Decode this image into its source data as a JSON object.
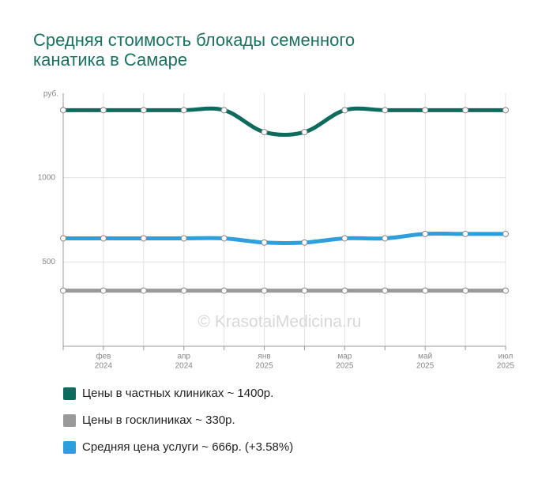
{
  "chart_data": {
    "type": "line",
    "title": [
      "Средняя стоимость блокады семенного",
      "канатика в Самаре"
    ],
    "y_axis_label": "руб.",
    "watermark": "© KrasotaiMedicina.ru",
    "categories": [
      null,
      [
        "фев",
        "2024"
      ],
      null,
      [
        "апр",
        "2024"
      ],
      null,
      [
        "янв",
        "2025"
      ],
      null,
      [
        "мар",
        "2025"
      ],
      null,
      [
        "май",
        "2025"
      ],
      null,
      [
        "июл",
        "2025"
      ]
    ],
    "ylim": [
      0,
      1500
    ],
    "yticks": [
      500,
      1000
    ],
    "grid": true,
    "series": [
      {
        "name": "Цены в частных клиниках ~ 1400р.",
        "color": "#0d6b5e",
        "values": [
          1400,
          1400,
          1400,
          1400,
          1400,
          1270,
          1270,
          1400,
          1400,
          1400,
          1400,
          1400
        ]
      },
      {
        "name": "Цены в госклиниках ~ 330р.",
        "color": "#9a9a9a",
        "values": [
          330,
          330,
          330,
          330,
          330,
          330,
          330,
          330,
          330,
          330,
          330,
          330
        ]
      },
      {
        "name": "Средняя цена услуги ~ 666р. (+3.58%)",
        "color": "#2d9fdf",
        "values": [
          640,
          640,
          640,
          640,
          640,
          615,
          615,
          640,
          640,
          666,
          666,
          666
        ]
      }
    ]
  }
}
